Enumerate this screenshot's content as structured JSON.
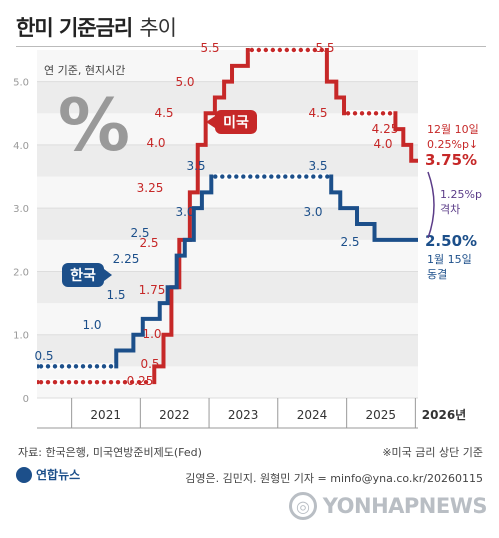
{
  "header": {
    "title_strong": "한미 기준금리",
    "title_light": "추이",
    "note": "연 기준, 현지시간"
  },
  "footer": {
    "source": "자료: 한국은행, 미국연방준비제도(Fed)",
    "source_note": "※미국 금리 상단 기준",
    "logo": "연합뉴스",
    "credit": "김영은. 김민지. 원형민 기자 = minfo@yna.co.kr/20260115",
    "watermark": "YONHAPNEWS"
  },
  "colors": {
    "us": "#c62828",
    "korea": "#1c4f8a",
    "gap": "#5b3c88"
  },
  "chart_data": {
    "type": "line",
    "step": "post",
    "ylim": [
      0,
      5.5
    ],
    "yticks": [
      "0",
      "1.0",
      "2.0",
      "3.0",
      "4.0",
      "5.0"
    ],
    "xlim": [
      "2020-07-01",
      "2026-01-15"
    ],
    "xticks": [
      "2021",
      "2022",
      "2023",
      "2024",
      "2025",
      "2026년"
    ],
    "grid": true,
    "series": [
      {
        "name": "미국",
        "color": "#c62828",
        "points": [
          [
            "2020-07-01",
            0.25
          ],
          [
            "2022-03-16",
            0.5
          ],
          [
            "2022-05-04",
            1.0
          ],
          [
            "2022-06-15",
            1.75
          ],
          [
            "2022-07-27",
            2.5
          ],
          [
            "2022-09-21",
            3.25
          ],
          [
            "2022-11-02",
            4.0
          ],
          [
            "2022-12-14",
            4.5
          ],
          [
            "2023-02-01",
            4.75
          ],
          [
            "2023-03-22",
            5.0
          ],
          [
            "2023-05-03",
            5.25
          ],
          [
            "2023-07-26",
            5.5
          ],
          [
            "2024-09-18",
            5.0
          ],
          [
            "2024-11-07",
            4.75
          ],
          [
            "2024-12-18",
            4.5
          ],
          [
            "2025-09-17",
            4.25
          ],
          [
            "2025-10-29",
            4.0
          ],
          [
            "2025-12-10",
            3.75
          ],
          [
            "2026-01-15",
            3.75
          ]
        ]
      },
      {
        "name": "한국",
        "color": "#1c4f8a",
        "points": [
          [
            "2020-07-01",
            0.5
          ],
          [
            "2021-08-26",
            0.75
          ],
          [
            "2021-11-25",
            1.0
          ],
          [
            "2022-01-14",
            1.25
          ],
          [
            "2022-04-14",
            1.5
          ],
          [
            "2022-05-26",
            1.75
          ],
          [
            "2022-07-13",
            2.25
          ],
          [
            "2022-08-25",
            2.5
          ],
          [
            "2022-10-12",
            3.0
          ],
          [
            "2022-11-24",
            3.25
          ],
          [
            "2023-01-13",
            3.5
          ],
          [
            "2024-10-11",
            3.25
          ],
          [
            "2024-11-28",
            3.0
          ],
          [
            "2025-02-25",
            2.75
          ],
          [
            "2025-05-29",
            2.5
          ],
          [
            "2026-01-15",
            2.5
          ]
        ]
      }
    ],
    "value_labels": {
      "us": [
        "0.25",
        "0.5",
        "1.0",
        "1.75",
        "2.5",
        "3.25",
        "4.0",
        "4.5",
        "5.0",
        "5.5",
        "5.5",
        "4.5",
        "4.25",
        "4.0",
        "3.75%"
      ],
      "korea": [
        "0.5",
        "1.0",
        "1.5",
        "2.25",
        "2.5",
        "3.0",
        "3.5",
        "3.5",
        "3.0",
        "2.5",
        "2.50%"
      ]
    },
    "series_labels": {
      "us": "미국",
      "korea": "한국"
    },
    "annotations": {
      "us_last_line1": "12월 10일",
      "us_last_line2": "0.25%p↓",
      "gap_line1": "1.25%p",
      "gap_line2": "격차",
      "korea_last_line1": "1월 15일",
      "korea_last_line2": "동결",
      "percent_mark": "%"
    }
  }
}
